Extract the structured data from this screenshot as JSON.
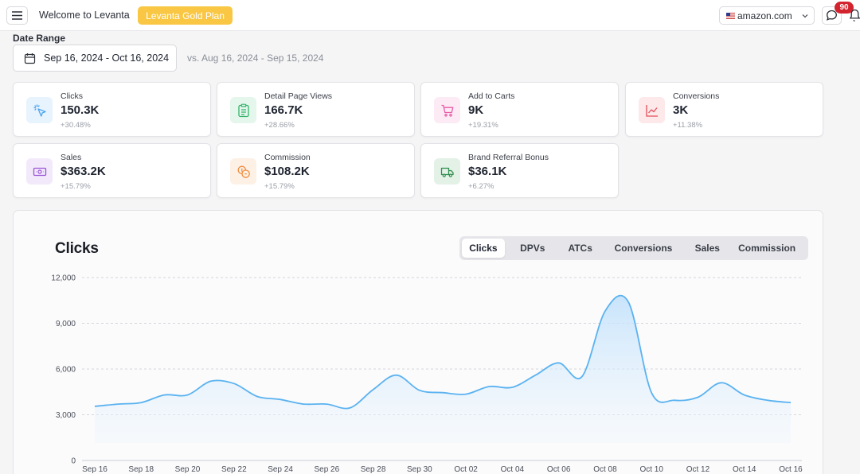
{
  "header": {
    "welcome": "Welcome to Levanta",
    "plan": "Levanta Gold Plan",
    "marketplace": "amazon.com",
    "notification_count": "90",
    "brand_color": "#f9c743",
    "badge_color": "#d3232e"
  },
  "date_range": {
    "label": "Date Range",
    "current": "Sep 16, 2024 - Oct 16, 2024",
    "compare": "vs. Aug 16, 2024 - Sep 15, 2024"
  },
  "stats": [
    {
      "label": "Clicks",
      "value": "150.3K",
      "change": "+30.48%",
      "icon": "cursor-click-icon",
      "color": "#4aa3ee"
    },
    {
      "label": "Detail Page Views",
      "value": "166.7K",
      "change": "+28.66%",
      "icon": "clipboard-list-icon",
      "color": "#33b36b"
    },
    {
      "label": "Add to Carts",
      "value": "9K",
      "change": "+19.31%",
      "icon": "cart-icon",
      "color": "#e85aa8"
    },
    {
      "label": "Conversions",
      "value": "3K",
      "change": "+11.38%",
      "icon": "trend-chart-icon",
      "color": "#e2505a"
    },
    {
      "label": "Sales",
      "value": "$363.2K",
      "change": "+15.79%",
      "icon": "banknote-icon",
      "color": "#9b55d6"
    },
    {
      "label": "Commission",
      "value": "$108.2K",
      "change": "+15.79%",
      "icon": "coins-icon",
      "color": "#ef8a3c"
    },
    {
      "label": "Brand Referral Bonus",
      "value": "$36.1K",
      "change": "+6.27%",
      "icon": "truck-icon",
      "color": "#2f8f4e"
    }
  ],
  "chart": {
    "title": "Clicks",
    "tabs": [
      "Clicks",
      "DPVs",
      "ATCs",
      "Conversions",
      "Sales",
      "Commission"
    ],
    "active_tab": "Clicks",
    "line_color": "#5ab2f0"
  },
  "chart_data": {
    "type": "area",
    "title": "Clicks",
    "xlabel": "",
    "ylabel": "",
    "ylim": [
      0,
      12000
    ],
    "yticks": [
      "0",
      "3,000",
      "6,000",
      "9,000",
      "12,000"
    ],
    "ytick_values": [
      0,
      3000,
      6000,
      9000,
      12000
    ],
    "grid": true,
    "x": [
      "Sep 16",
      "Sep 17",
      "Sep 18",
      "Sep 19",
      "Sep 20",
      "Sep 21",
      "Sep 22",
      "Sep 23",
      "Sep 24",
      "Sep 25",
      "Sep 26",
      "Sep 27",
      "Sep 28",
      "Sep 29",
      "Sep 30",
      "Oct 01",
      "Oct 02",
      "Oct 03",
      "Oct 04",
      "Oct 05",
      "Oct 06",
      "Oct 07",
      "Oct 08",
      "Oct 09",
      "Oct 10",
      "Oct 11",
      "Oct 12",
      "Oct 13",
      "Oct 14",
      "Oct 15",
      "Oct 16"
    ],
    "xtick_labels": [
      "Sep 16",
      "Sep 18",
      "Sep 20",
      "Sep 22",
      "Sep 24",
      "Sep 26",
      "Sep 28",
      "Sep 30",
      "Oct 02",
      "Oct 04",
      "Oct 06",
      "Oct 08",
      "Oct 10",
      "Oct 12",
      "Oct 14",
      "Oct 16"
    ],
    "series": [
      {
        "values": [
          3550,
          3700,
          3800,
          4300,
          4300,
          5200,
          5050,
          4200,
          4000,
          3700,
          3700,
          3450,
          4650,
          5600,
          4600,
          4450,
          4350,
          4850,
          4800,
          5600,
          6400,
          5500,
          9800,
          10400,
          4450,
          3950,
          4150,
          5100,
          4300,
          3950,
          3800
        ]
      }
    ]
  }
}
